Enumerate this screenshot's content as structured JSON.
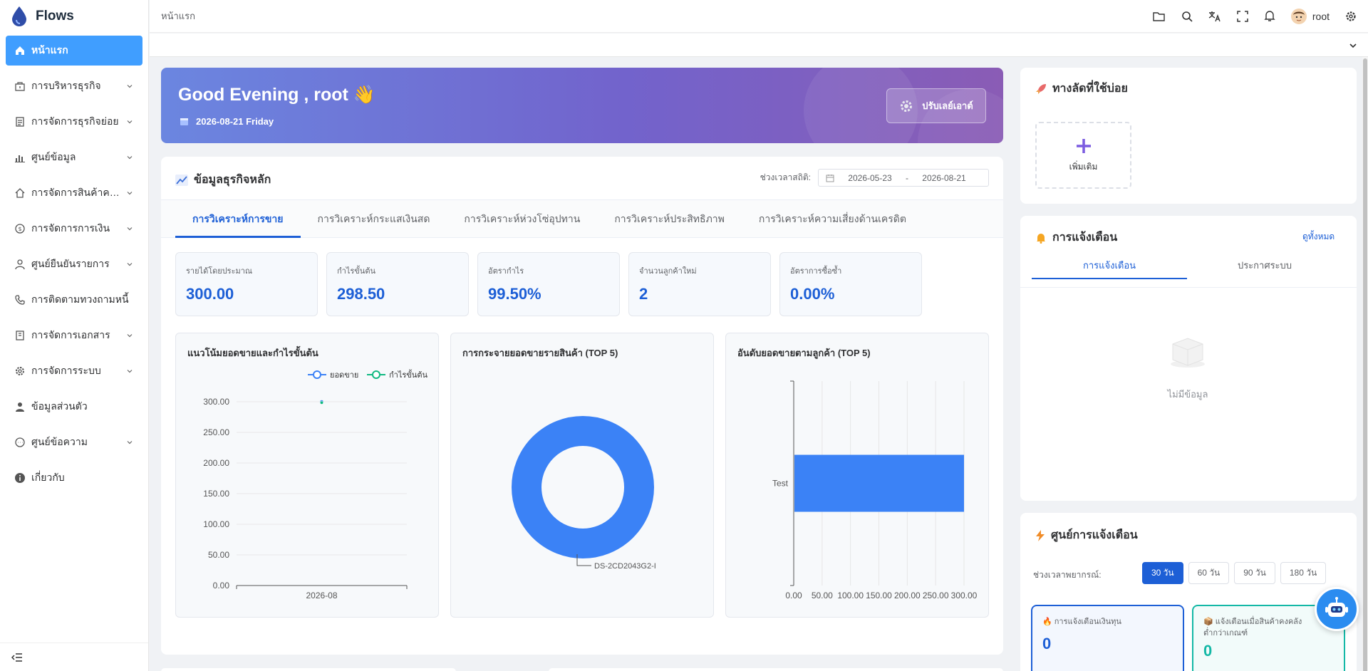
{
  "app": {
    "title": "Flows"
  },
  "sidebar": {
    "items": [
      {
        "label": "หน้าแรก",
        "icon": "home-icon"
      },
      {
        "label": "การบริหารธุรกิจ",
        "icon": "shop-icon"
      },
      {
        "label": "การจัดการธุรกิจย่อย",
        "icon": "document-icon"
      },
      {
        "label": "ศูนย์ข้อมูล",
        "icon": "chart-icon"
      },
      {
        "label": "การจัดการสินค้าคงคลัง",
        "icon": "house-icon"
      },
      {
        "label": "การจัดการการเงิน",
        "icon": "coin-icon"
      },
      {
        "label": "ศูนย์ยืนยันรายการ",
        "icon": "user-icon"
      },
      {
        "label": "การติดตามทวงถามหนี้",
        "icon": "phone-icon"
      },
      {
        "label": "การจัดการเอกสาร",
        "icon": "folder-icon"
      },
      {
        "label": "การจัดการระบบ",
        "icon": "gear-icon"
      },
      {
        "label": "ข้อมูลส่วนตัว",
        "icon": "person-icon"
      },
      {
        "label": "ศูนย์ข้อความ",
        "icon": "message-icon"
      },
      {
        "label": "เกี่ยวกับ",
        "icon": "info-icon"
      }
    ]
  },
  "header": {
    "breadcrumb": "หน้าแรก",
    "username": "root"
  },
  "welcome": {
    "greeting": "Good Evening , root 👋",
    "date": "2026-08-21 Friday",
    "layout_button": "ปรับเลย์เอาต์"
  },
  "business": {
    "title": "ข้อมูลธุรกิจหลัก",
    "period_label": "ช่วงเวลาสถิติ:",
    "date_from": "2026-05-23",
    "date_sep": "-",
    "date_to": "2026-08-21",
    "tabs": [
      "การวิเคราะห์การขาย",
      "การวิเคราะห์กระแสเงินสด",
      "การวิเคราะห์ห่วงโซ่อุปทาน",
      "การวิเคราะห์ประสิทธิภาพ",
      "การวิเคราะห์ความเสี่ยงด้านเครดิต"
    ],
    "kpis": [
      {
        "label": "รายได้โดยประมาณ",
        "value": "300.00"
      },
      {
        "label": "กำไรขั้นต้น",
        "value": "298.50"
      },
      {
        "label": "อัตรากำไร",
        "value": "99.50%"
      },
      {
        "label": "จำนวนลูกค้าใหม่",
        "value": "2"
      },
      {
        "label": "อัตราการซื้อซ้ำ",
        "value": "0.00%"
      }
    ]
  },
  "chart_data": [
    {
      "type": "line",
      "title": "แนวโน้มยอดขายและกำไรขั้นต้น",
      "categories": [
        "2026-08"
      ],
      "series": [
        {
          "name": "ยอดขาย",
          "values": [
            300.0
          ],
          "color": "#3b82f6"
        },
        {
          "name": "กำไรขั้นต้น",
          "values": [
            298.5
          ],
          "color": "#10b981"
        }
      ],
      "ylim": [
        0,
        300
      ],
      "yticks": [
        "0.00",
        "50.00",
        "100.00",
        "150.00",
        "200.00",
        "250.00",
        "300.00"
      ],
      "legend": "top-right",
      "grid": true
    },
    {
      "type": "pie",
      "title": "การกระจายยอดขายรายสินค้า (TOP 5)",
      "categories": [
        "DS-2CD2043G2-I"
      ],
      "values": [
        300
      ],
      "color": "#3b82f6"
    },
    {
      "type": "bar",
      "title": "อันดับยอดขายตามลูกค้า (TOP 5)",
      "categories": [
        "Test"
      ],
      "values": [
        300
      ],
      "xlim": [
        0,
        300
      ],
      "xticks": [
        "0.00",
        "50.00",
        "100.00",
        "150.00",
        "200.00",
        "250.00",
        "300.00"
      ],
      "color": "#3b82f6",
      "grid": true
    }
  ],
  "shortcuts": {
    "title": "ทางลัดที่ใช้บ่อย",
    "add_label": "เพิ่มเติม"
  },
  "notifications": {
    "title": "การแจ้งเตือน",
    "view_all": "ดูทั้งหมด",
    "tabs": [
      "การแจ้งเตือน",
      "ประกาศระบบ"
    ],
    "empty": "ไม่มีข้อมูล"
  },
  "alert_center": {
    "title": "ศูนย์การแจ้งเตือน",
    "period_label": "ช่วงเวลาพยากรณ์:",
    "periods": [
      "30 วัน",
      "60 วัน",
      "90 วัน",
      "180 วัน"
    ],
    "cards": [
      {
        "label": "การแจ้งเตือนเงินทุน",
        "value": "0",
        "color": "#1d5fd6"
      },
      {
        "label": "แจ้งเตือนเมื่อสินค้าคงคลังต่ำกว่าเกณฑ์",
        "value": "0",
        "color": "#14b8a6"
      }
    ]
  }
}
